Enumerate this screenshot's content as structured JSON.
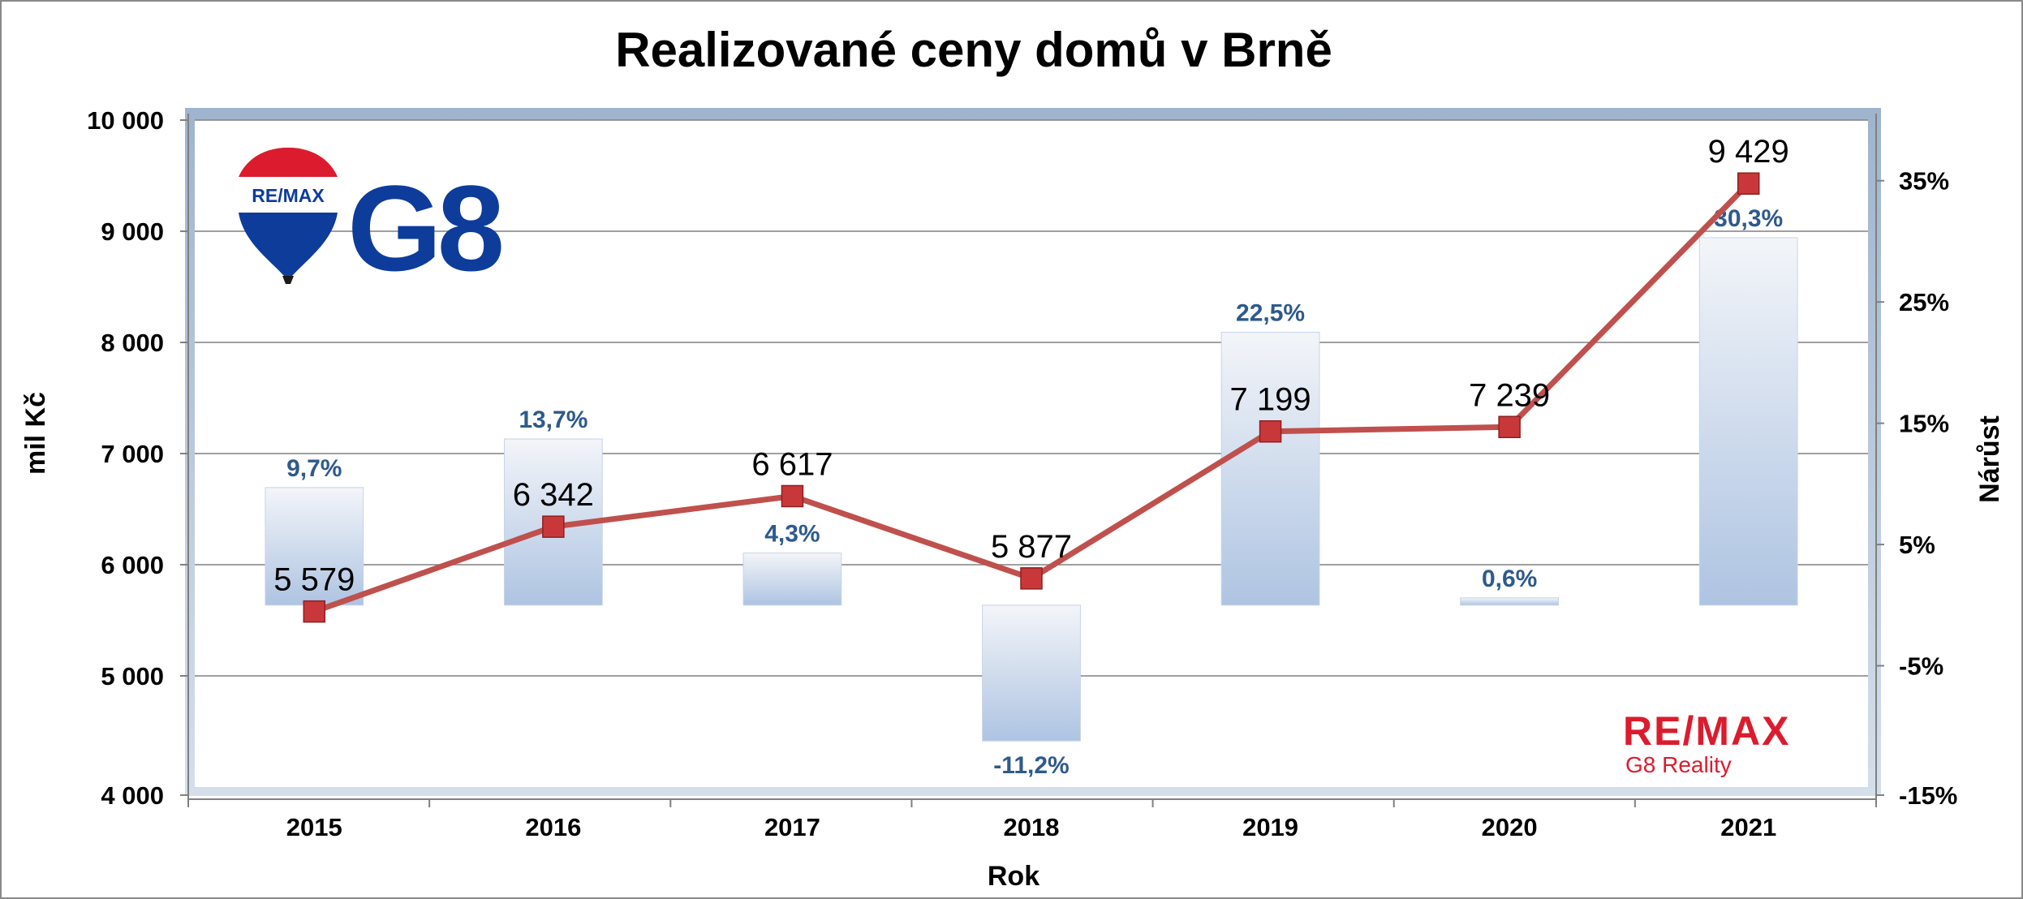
{
  "chart_data": {
    "type": "bar+line",
    "title": "Realizované ceny domů v Brně",
    "xlabel": "Rok",
    "ylabel_left": "mil Kč",
    "ylabel_right": "Nárůst",
    "categories": [
      "2015",
      "2016",
      "2017",
      "2018",
      "2019",
      "2020",
      "2021"
    ],
    "y_left": {
      "lim": [
        4000,
        10000
      ],
      "ticks": [
        4000,
        5000,
        6000,
        7000,
        8000,
        9000,
        10000
      ],
      "tick_labels": [
        "4 000",
        "5 000",
        "6 000",
        "7 000",
        "8 000",
        "9 000",
        "10 000"
      ]
    },
    "y_right": {
      "lim": [
        -15,
        40
      ],
      "ticks": [
        -15,
        -5,
        5,
        15,
        25,
        35
      ],
      "tick_labels": [
        "-15%",
        "-5%",
        "5%",
        "15%",
        "25%",
        "35%"
      ]
    },
    "grid": true,
    "series": [
      {
        "type": "line",
        "axis": "left",
        "color": "#C0504D",
        "values": [
          5579,
          6342,
          6617,
          5877,
          7199,
          7239,
          9429
        ],
        "labels": [
          "5 579",
          "6 342",
          "6 617",
          "5 877",
          "7 199",
          "7 239",
          "9 429"
        ]
      },
      {
        "type": "bar",
        "axis": "right",
        "color": "#A9C1E2",
        "values": [
          9.7,
          13.7,
          4.3,
          -11.2,
          22.5,
          0.6,
          30.3
        ],
        "labels": [
          "9,7%",
          "13,7%",
          "4,3%",
          "-11,2%",
          "22,5%",
          "0,6%",
          "30,3%"
        ]
      }
    ]
  },
  "logos": {
    "balloon_text": "RE/MAX",
    "g8_text": "G8",
    "remax_text": "RE/MAX",
    "remax_sub": "G8 Reality",
    "brand_blue": "#0D3C9B",
    "brand_red": "#DC1C2E"
  }
}
